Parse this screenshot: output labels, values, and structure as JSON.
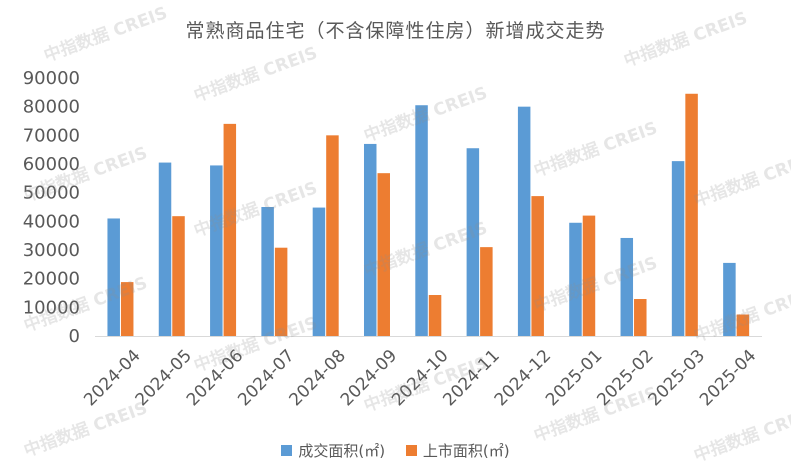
{
  "chart_data": {
    "type": "bar",
    "title": "常熟商品住宅（不含保障性住房）新增成交走势",
    "categories": [
      "2024-04",
      "2024-05",
      "2024-06",
      "2024-07",
      "2024-08",
      "2024-09",
      "2024-10",
      "2024-11",
      "2024-12",
      "2025-01",
      "2025-02",
      "2025-03",
      "2025-04"
    ],
    "series": [
      {
        "name": "成交面积(㎡)",
        "color": "#5B9BD5",
        "values": [
          41000,
          60500,
          59500,
          45000,
          44800,
          67000,
          80500,
          65500,
          80000,
          39500,
          34200,
          61000,
          25500
        ]
      },
      {
        "name": "上市面积(㎡)",
        "color": "#ED7D31",
        "values": [
          18800,
          41800,
          74000,
          30800,
          70000,
          56800,
          14300,
          31000,
          48800,
          42000,
          12900,
          84500,
          7500
        ]
      }
    ],
    "ylim": [
      0,
      90000
    ],
    "yticks": [
      "0",
      "10000",
      "20000",
      "30000",
      "40000",
      "50000",
      "60000",
      "70000",
      "80000",
      "90000"
    ],
    "grid": false,
    "legend": "bottom"
  },
  "watermark": "中指数据 CREIS"
}
